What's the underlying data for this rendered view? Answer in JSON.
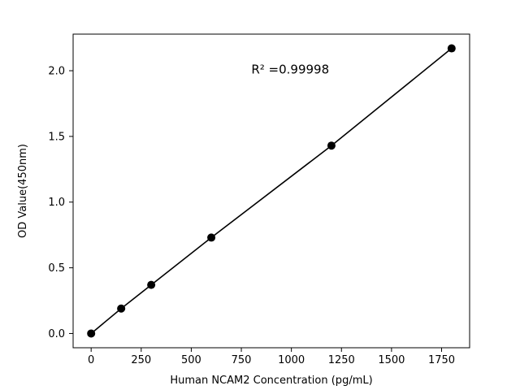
{
  "chart_data": {
    "type": "scatter",
    "line_overlay": true,
    "x": [
      0,
      150,
      300,
      600,
      1200,
      1800
    ],
    "y": [
      0.0,
      0.19,
      0.37,
      0.73,
      1.43,
      2.17
    ],
    "title": "",
    "xlabel": "Human NCAM2 Concentration (pg/mL)",
    "ylabel": "OD Value(450nm)",
    "xlim": [
      -90,
      1890
    ],
    "ylim": [
      -0.1085,
      2.2785
    ],
    "x_ticks": [
      0,
      250,
      500,
      750,
      1000,
      1250,
      1500,
      1750
    ],
    "x_tick_labels": [
      "0",
      "250",
      "500",
      "750",
      "1000",
      "1250",
      "1500",
      "1750"
    ],
    "y_ticks": [
      0.0,
      0.5,
      1.0,
      1.5,
      2.0
    ],
    "y_tick_labels": [
      "0.0",
      "0.5",
      "1.0",
      "1.5",
      "2.0"
    ],
    "annotation": {
      "text": "R² =0.99998",
      "x": 800,
      "y": 1.98
    },
    "grid": false,
    "legend": "none",
    "marker_color": "#000000",
    "line_color": "#000000",
    "frame_color": "#000000",
    "background_color": "#ffffff"
  }
}
